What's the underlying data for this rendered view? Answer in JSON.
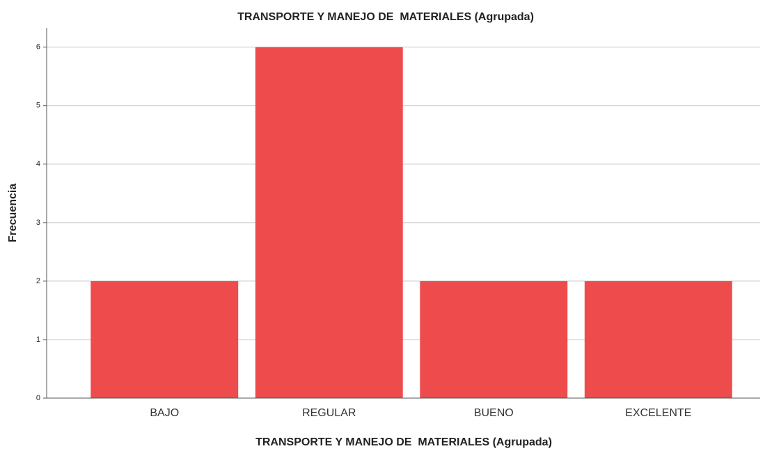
{
  "chart_data": {
    "type": "bar",
    "title": "TRANSPORTE Y MANEJO DE  MATERIALES (Agrupada)",
    "x_label": "TRANSPORTE Y MANEJO DE  MATERIALES (Agrupada)",
    "y_label": "Frecuencia",
    "categories": [
      "BAJO",
      "REGULAR",
      "BUENO",
      "EXCELENTE"
    ],
    "values": [
      2,
      6,
      2,
      2
    ],
    "color": "#ee4b4d",
    "ylim": [
      0,
      6.33
    ],
    "yticks": [
      0,
      1,
      2,
      3,
      4,
      5,
      6
    ],
    "grid": true
  }
}
